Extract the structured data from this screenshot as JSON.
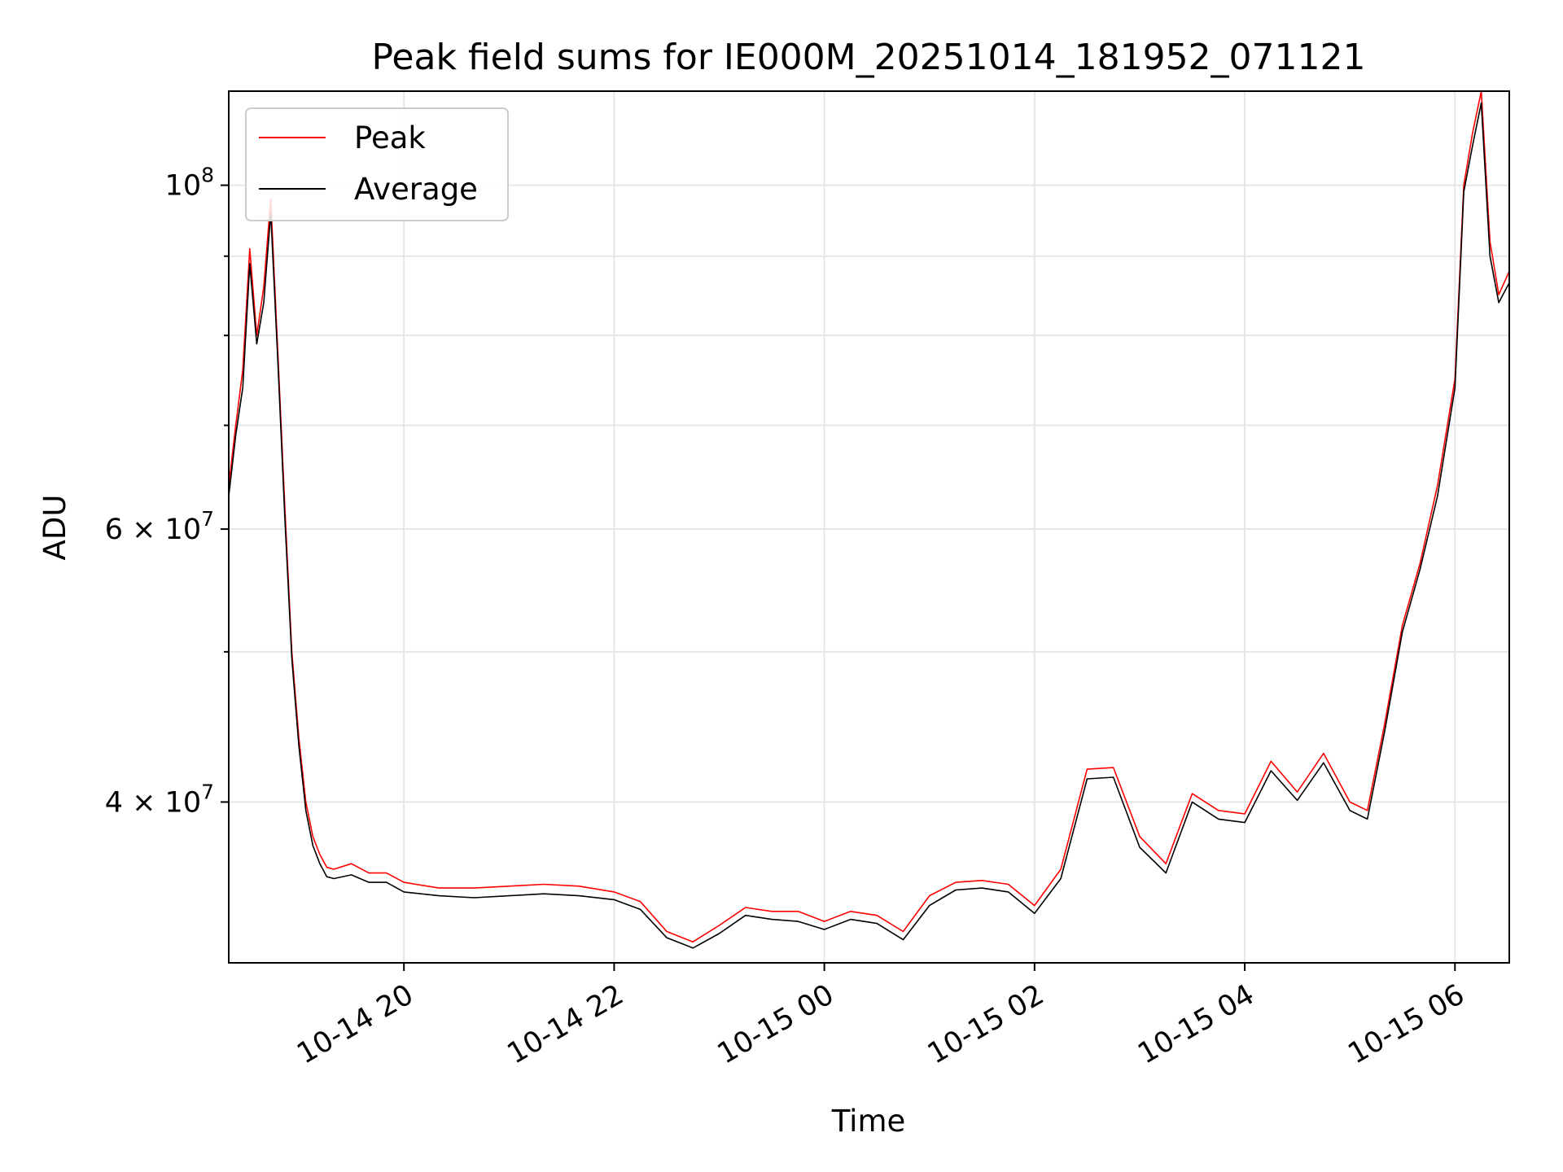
{
  "chart_data": {
    "type": "line",
    "title": "Peak field sums for IE000M_20251014_181952_071121",
    "xlabel": "Time",
    "ylabel": "ADU",
    "y_scale": "log",
    "xlim": [
      "2025-10-14 18:20",
      "2025-10-15 06:31"
    ],
    "ylim": [
      31500000,
      115000000
    ],
    "grid": true,
    "legend_position": "top-left",
    "x_ticks": [
      {
        "value": "2025-10-14 20:00",
        "label": "10-14 20"
      },
      {
        "value": "2025-10-14 22:00",
        "label": "10-14 22"
      },
      {
        "value": "2025-10-15 00:00",
        "label": "10-15 00"
      },
      {
        "value": "2025-10-15 02:00",
        "label": "10-15 02"
      },
      {
        "value": "2025-10-15 04:00",
        "label": "10-15 04"
      },
      {
        "value": "2025-10-15 06:00",
        "label": "10-15 06"
      }
    ],
    "y_ticks": [
      {
        "value": 40000000,
        "base": "4",
        "exp": "7"
      },
      {
        "value": 60000000,
        "base": "6",
        "exp": "7"
      },
      {
        "value": 100000000,
        "base": "",
        "exp": "8"
      }
    ],
    "y_minor_ticks": [
      50000000,
      70000000,
      80000000,
      90000000
    ],
    "colors": {
      "Peak": "#ff0000",
      "Average": "#000000"
    },
    "series": [
      {
        "name": "Peak",
        "x": [
          "2025-10-14 18:20",
          "2025-10-14 18:24",
          "2025-10-14 18:28",
          "2025-10-14 18:32",
          "2025-10-14 18:36",
          "2025-10-14 18:40",
          "2025-10-14 18:44",
          "2025-10-14 18:48",
          "2025-10-14 18:52",
          "2025-10-14 18:56",
          "2025-10-14 19:00",
          "2025-10-14 19:04",
          "2025-10-14 19:08",
          "2025-10-14 19:12",
          "2025-10-14 19:16",
          "2025-10-14 19:20",
          "2025-10-14 19:30",
          "2025-10-14 19:40",
          "2025-10-14 19:50",
          "2025-10-14 20:00",
          "2025-10-14 20:20",
          "2025-10-14 20:40",
          "2025-10-14 21:00",
          "2025-10-14 21:20",
          "2025-10-14 21:40",
          "2025-10-14 22:00",
          "2025-10-14 22:15",
          "2025-10-14 22:30",
          "2025-10-14 22:45",
          "2025-10-14 23:00",
          "2025-10-14 23:15",
          "2025-10-14 23:30",
          "2025-10-14 23:45",
          "2025-10-15 00:00",
          "2025-10-15 00:15",
          "2025-10-15 00:30",
          "2025-10-15 00:45",
          "2025-10-15 01:00",
          "2025-10-15 01:15",
          "2025-10-15 01:30",
          "2025-10-15 01:45",
          "2025-10-15 02:00",
          "2025-10-15 02:15",
          "2025-10-15 02:30",
          "2025-10-15 02:45",
          "2025-10-15 03:00",
          "2025-10-15 03:15",
          "2025-10-15 03:30",
          "2025-10-15 03:45",
          "2025-10-15 04:00",
          "2025-10-15 04:15",
          "2025-10-15 04:30",
          "2025-10-15 04:45",
          "2025-10-15 05:00",
          "2025-10-15 05:10",
          "2025-10-15 05:20",
          "2025-10-15 05:30",
          "2025-10-15 05:40",
          "2025-10-15 05:50",
          "2025-10-15 06:00",
          "2025-10-15 06:05",
          "2025-10-15 06:10",
          "2025-10-15 06:15",
          "2025-10-15 06:20",
          "2025-10-15 06:25",
          "2025-10-15 06:31"
        ],
        "values": [
          64000000,
          70000000,
          76000000,
          91000000,
          80000000,
          86000000,
          98000000,
          78000000,
          62000000,
          50000000,
          44000000,
          40000000,
          38000000,
          37000000,
          36300000,
          36200000,
          36500000,
          36000000,
          36000000,
          35500000,
          35200000,
          35200000,
          35300000,
          35400000,
          35300000,
          35000000,
          34500000,
          33000000,
          32500000,
          33300000,
          34200000,
          34000000,
          34000000,
          33500000,
          34000000,
          33800000,
          33000000,
          34800000,
          35500000,
          35600000,
          35400000,
          34300000,
          36200000,
          42000000,
          42100000,
          38000000,
          36500000,
          40500000,
          39500000,
          39300000,
          42500000,
          40600000,
          43000000,
          40000000,
          39500000,
          45000000,
          52000000,
          57000000,
          64000000,
          75000000,
          100000000,
          108000000,
          115000000,
          92000000,
          85000000,
          88000000
        ]
      },
      {
        "name": "Average",
        "x": [
          "2025-10-14 18:20",
          "2025-10-14 18:24",
          "2025-10-14 18:28",
          "2025-10-14 18:32",
          "2025-10-14 18:36",
          "2025-10-14 18:40",
          "2025-10-14 18:44",
          "2025-10-14 18:48",
          "2025-10-14 18:52",
          "2025-10-14 18:56",
          "2025-10-14 19:00",
          "2025-10-14 19:04",
          "2025-10-14 19:08",
          "2025-10-14 19:12",
          "2025-10-14 19:16",
          "2025-10-14 19:20",
          "2025-10-14 19:30",
          "2025-10-14 19:40",
          "2025-10-14 19:50",
          "2025-10-14 20:00",
          "2025-10-14 20:20",
          "2025-10-14 20:40",
          "2025-10-14 21:00",
          "2025-10-14 21:20",
          "2025-10-14 21:40",
          "2025-10-14 22:00",
          "2025-10-14 22:15",
          "2025-10-14 22:30",
          "2025-10-14 22:45",
          "2025-10-14 23:00",
          "2025-10-14 23:15",
          "2025-10-14 23:30",
          "2025-10-14 23:45",
          "2025-10-15 00:00",
          "2025-10-15 00:15",
          "2025-10-15 00:30",
          "2025-10-15 00:45",
          "2025-10-15 01:00",
          "2025-10-15 01:15",
          "2025-10-15 01:30",
          "2025-10-15 01:45",
          "2025-10-15 02:00",
          "2025-10-15 02:15",
          "2025-10-15 02:30",
          "2025-10-15 02:45",
          "2025-10-15 03:00",
          "2025-10-15 03:15",
          "2025-10-15 03:30",
          "2025-10-15 03:45",
          "2025-10-15 04:00",
          "2025-10-15 04:15",
          "2025-10-15 04:30",
          "2025-10-15 04:45",
          "2025-10-15 05:00",
          "2025-10-15 05:10",
          "2025-10-15 05:20",
          "2025-10-15 05:30",
          "2025-10-15 05:40",
          "2025-10-15 05:50",
          "2025-10-15 06:00",
          "2025-10-15 06:05",
          "2025-10-15 06:10",
          "2025-10-15 06:15",
          "2025-10-15 06:20",
          "2025-10-15 06:25",
          "2025-10-15 06:31"
        ],
        "values": [
          63000000,
          69000000,
          74000000,
          89000000,
          79000000,
          84000000,
          96000000,
          77000000,
          61000000,
          49500000,
          43500000,
          39500000,
          37500000,
          36500000,
          35800000,
          35700000,
          35900000,
          35500000,
          35500000,
          35000000,
          34800000,
          34700000,
          34800000,
          34900000,
          34800000,
          34600000,
          34100000,
          32700000,
          32200000,
          32900000,
          33800000,
          33600000,
          33500000,
          33100000,
          33600000,
          33400000,
          32600000,
          34300000,
          35100000,
          35200000,
          35000000,
          33900000,
          35700000,
          41400000,
          41500000,
          37400000,
          36000000,
          40000000,
          39000000,
          38800000,
          41900000,
          40100000,
          42400000,
          39500000,
          39000000,
          44500000,
          51500000,
          56500000,
          63000000,
          74000000,
          99000000,
          106000000,
          113000000,
          90000000,
          84000000,
          86500000
        ]
      }
    ]
  }
}
